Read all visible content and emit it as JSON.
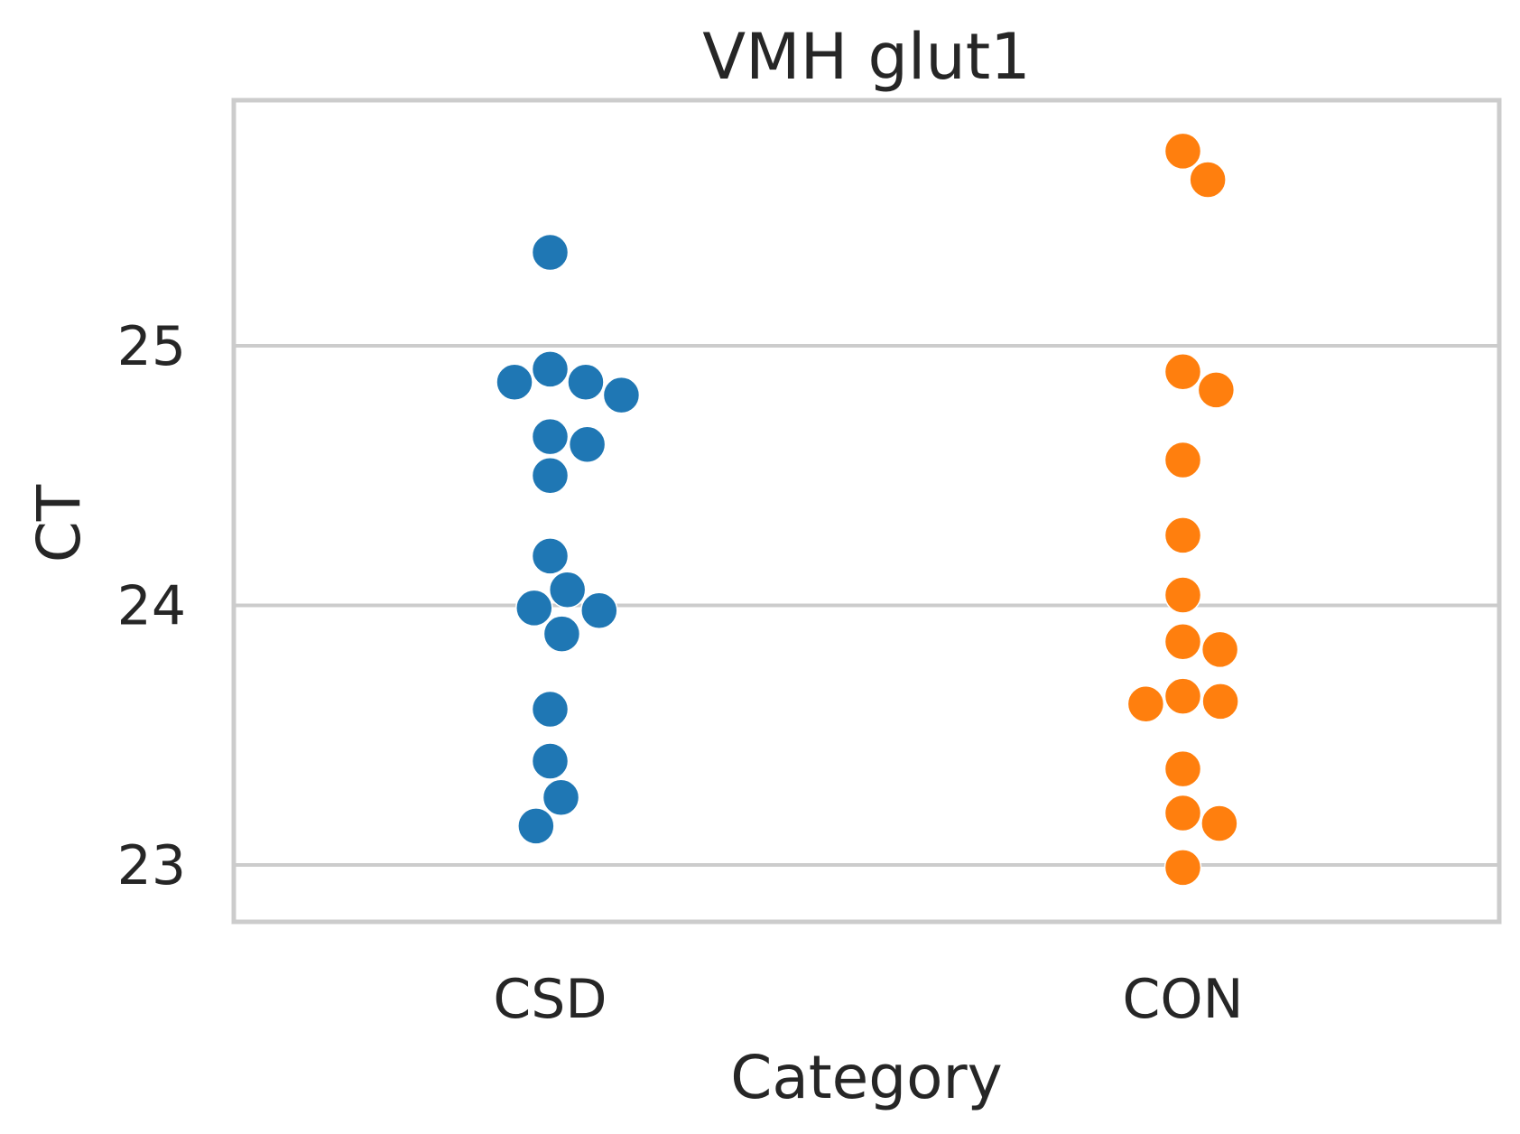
{
  "chart_data": {
    "type": "scatter",
    "subtype": "swarm",
    "title": "VMH glut1",
    "xlabel": "Category",
    "ylabel": "CT",
    "categories": [
      "CSD",
      "CON"
    ],
    "ylim": [
      22.8,
      25.95
    ],
    "yticks": [
      23,
      24,
      25
    ],
    "grid": "horizontal",
    "series": [
      {
        "category": "CSD",
        "color": "#1f77b4",
        "values": [
          25.36,
          24.91,
          24.86,
          24.86,
          24.81,
          24.65,
          24.62,
          24.5,
          24.19,
          24.06,
          23.99,
          23.98,
          23.89,
          23.6,
          23.4,
          23.26,
          23.15
        ]
      },
      {
        "category": "CON",
        "color": "#ff7f0e",
        "values": [
          25.75,
          25.64,
          24.9,
          24.83,
          24.56,
          24.27,
          24.04,
          23.86,
          23.83,
          23.65,
          23.63,
          23.62,
          23.37,
          23.2,
          23.16,
          22.99
        ]
      }
    ]
  }
}
